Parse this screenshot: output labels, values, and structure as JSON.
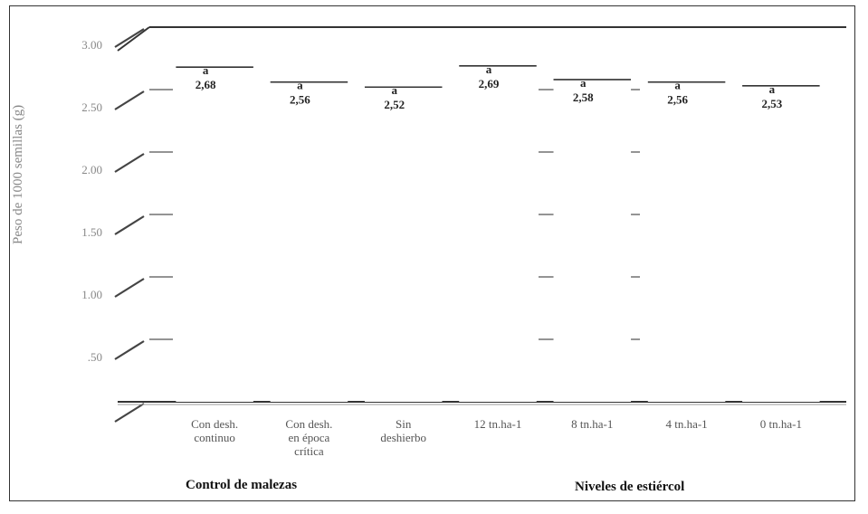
{
  "chart_data": {
    "type": "bar",
    "ylabel": "Peso de 1000 semillas (g)",
    "ylim": [
      0,
      3.0
    ],
    "yticks": [
      "",
      ".50",
      "1.00",
      "1.50",
      "2.00",
      "2.50",
      "3.00"
    ],
    "categories": [
      "Con desh. continuo",
      "Con desh. en época crítica",
      "Sin deshierbo",
      "12 tn.ha-1",
      "8 tn.ha-1",
      "4 tn.ha-1",
      "0 tn.ha-1"
    ],
    "category_lines": [
      [
        "Con desh.",
        "continuo"
      ],
      [
        "Con desh.",
        "en época",
        "crítica"
      ],
      [
        "Sin",
        "deshierbo"
      ],
      [
        "12 tn.ha-1"
      ],
      [
        "8 tn.ha-1"
      ],
      [
        "4 tn.ha-1"
      ],
      [
        "0 tn.ha-1"
      ]
    ],
    "values": [
      2.68,
      2.56,
      2.52,
      2.69,
      2.58,
      2.56,
      2.53
    ],
    "value_labels": [
      "2,68",
      "2,56",
      "2,52",
      "2,69",
      "2,58",
      "2,56",
      "2,53"
    ],
    "letters": [
      "a",
      "a",
      "a",
      "a",
      "a",
      "a",
      "a"
    ],
    "groups": [
      {
        "label": "Control de malezas",
        "categories": [
          0,
          1,
          2
        ]
      },
      {
        "label": "Niveles de estiércol",
        "categories": [
          3,
          4,
          5,
          6
        ]
      }
    ],
    "grid": true,
    "bar_color": "#ffffff",
    "grid_color": "#555555"
  }
}
